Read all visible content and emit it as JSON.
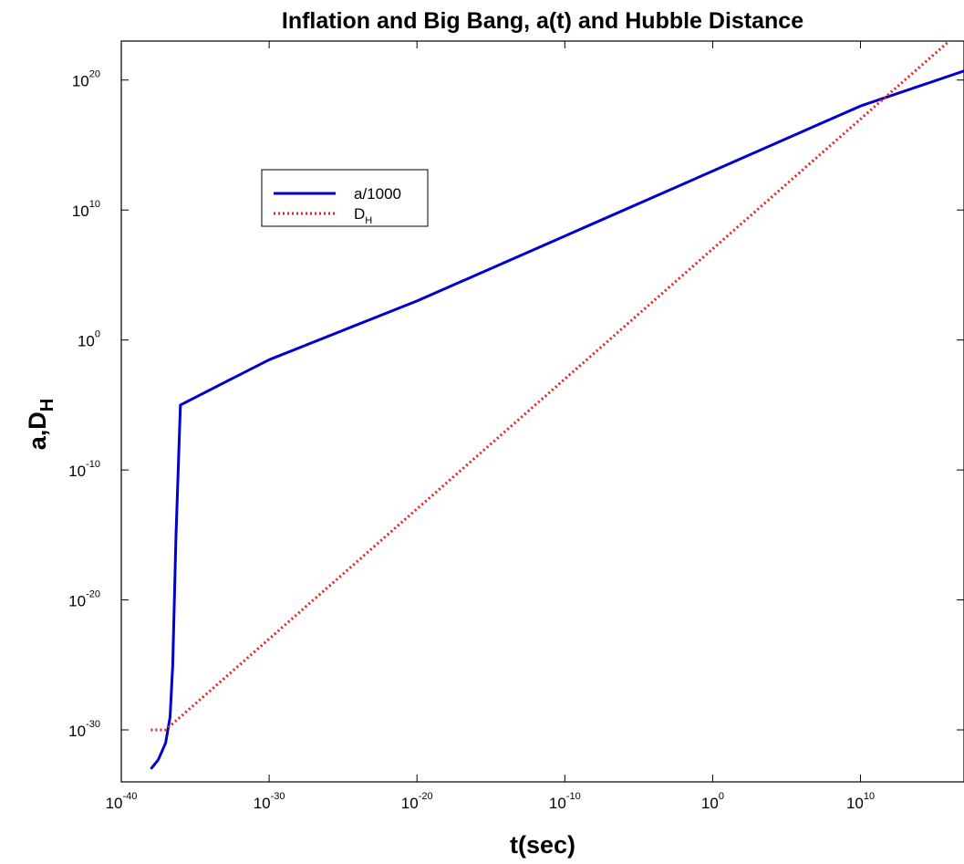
{
  "chart_data": {
    "type": "line",
    "title": "Inflation and Big Bang, a(t) and Hubble Distance",
    "xlabel": "t(sec)",
    "ylabel": {
      "main": "a,D",
      "sub": "H"
    },
    "x_scale": "log",
    "y_scale": "log",
    "xlim": [
      1e-40,
      1e+17
    ],
    "ylim": [
      1e-34,
      1e+23
    ],
    "x_ticks": [
      {
        "base": "10",
        "exp": "-40",
        "value": 1e-40
      },
      {
        "base": "10",
        "exp": "-30",
        "value": 1e-30
      },
      {
        "base": "10",
        "exp": "-20",
        "value": 1e-20
      },
      {
        "base": "10",
        "exp": "-10",
        "value": 1e-10
      },
      {
        "base": "10",
        "exp": "0",
        "value": 1
      },
      {
        "base": "10",
        "exp": "10",
        "value": 10000000000.0
      }
    ],
    "y_ticks": [
      {
        "base": "10",
        "exp": "-30",
        "value": 1e-30
      },
      {
        "base": "10",
        "exp": "-20",
        "value": 1e-20
      },
      {
        "base": "10",
        "exp": "-10",
        "value": 1e-10
      },
      {
        "base": "10",
        "exp": "0",
        "value": 1
      },
      {
        "base": "10",
        "exp": "10",
        "value": 10000000000.0
      },
      {
        "base": "10",
        "exp": "20",
        "value": 1e+20
      }
    ],
    "grid": false,
    "legend_position": "top-left",
    "series": [
      {
        "name": "a/1000",
        "color": "#0000cc",
        "style": "solid",
        "x": [
          1e-38,
          3.16e-38,
          1e-37,
          2e-37,
          3e-37,
          5e-37,
          1e-36,
          1e-30,
          1e-20,
          1e-10,
          1,
          10000000000.0,
          1e+17
        ],
        "y": [
          1e-33,
          5e-33,
          1e-31,
          1e-29,
          1e-25,
          1e-15,
          1e-05,
          0.03,
          1000.0,
          100000000.0,
          10000000000000.0,
          1e+18,
          5e+20
        ]
      },
      {
        "name": "D",
        "name_sub": "H",
        "color": "#e82020",
        "style": "dotted",
        "x": [
          1e-38,
          1e-37,
          1e-30,
          1e-20,
          1e-10,
          1,
          10000000000.0,
          1e+17
        ],
        "y": [
          1e-30,
          1e-30,
          1e-23,
          1e-13,
          0.001,
          10000000.0,
          1e+17,
          1e+24
        ]
      }
    ]
  }
}
